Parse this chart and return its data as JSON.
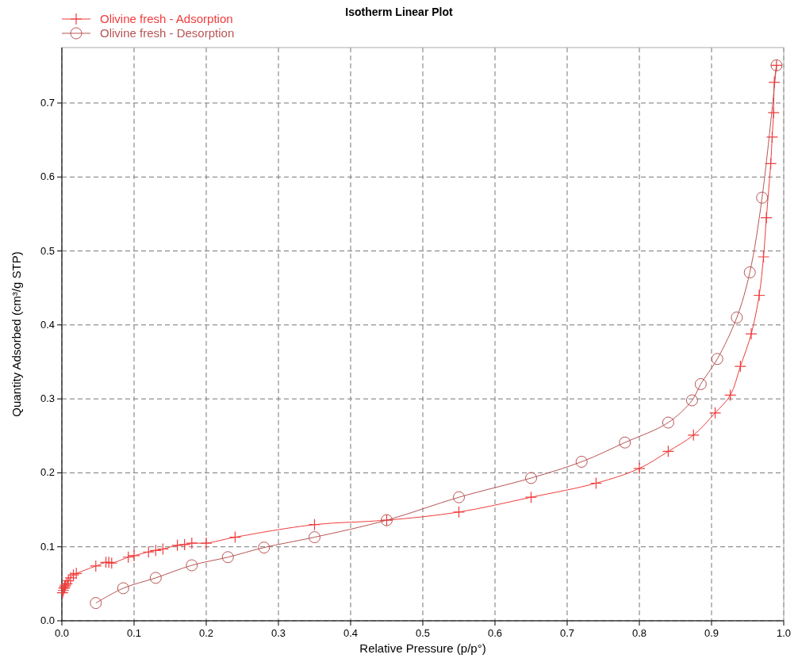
{
  "chart_data": {
    "type": "line",
    "title": "Isotherm Linear Plot",
    "xlabel": "Relative Pressure (p/p°)",
    "ylabel": "Quantity Adsorbed (cm³/g STP)",
    "xlim": [
      0,
      1
    ],
    "xticks": [
      {
        "value": 0,
        "label": "0.0"
      },
      0.1,
      0.2,
      0.3,
      0.4,
      0.5,
      0.6,
      0.7,
      0.8,
      0.9,
      {
        "value": 1,
        "label": "1.0"
      }
    ],
    "ylim": [
      0,
      0.775
    ],
    "yticks": [
      {
        "value": 0,
        "label": "0.0"
      },
      0.1,
      0.2,
      0.3,
      0.4,
      0.5,
      0.6,
      0.7
    ],
    "grid": true,
    "legend": "top left",
    "series": [
      {
        "name": "Olivine fresh - Adsorption",
        "color": "#f03c3c",
        "marker": "cross",
        "x": [
          0.001,
          0.002,
          0.003,
          0.004,
          0.005,
          0.007,
          0.009,
          0.012,
          0.016,
          0.02,
          0.047,
          0.061,
          0.065,
          0.069,
          0.092,
          0.1,
          0.12,
          0.13,
          0.14,
          0.16,
          0.17,
          0.18,
          0.2,
          0.24,
          0.35,
          0.45,
          0.55,
          0.65,
          0.74,
          0.8,
          0.84,
          0.875,
          0.905,
          0.926,
          0.94,
          0.955,
          0.966,
          0.972,
          0.976,
          0.982,
          0.984,
          0.986,
          0.987,
          0.99
        ],
        "values": [
          0.038,
          0.041,
          0.044,
          0.046,
          0.048,
          0.05,
          0.054,
          0.058,
          0.062,
          0.064,
          0.074,
          0.079,
          0.079,
          0.078,
          0.086,
          0.088,
          0.093,
          0.095,
          0.097,
          0.102,
          0.103,
          0.105,
          0.105,
          0.113,
          0.13,
          0.136,
          0.147,
          0.167,
          0.186,
          0.206,
          0.229,
          0.251,
          0.281,
          0.305,
          0.344,
          0.388,
          0.44,
          0.492,
          0.545,
          0.618,
          0.654,
          0.687,
          0.728,
          0.751
        ]
      },
      {
        "name": "Olivine fresh - Desorption",
        "color": "#b85454",
        "marker": "circle",
        "x": [
          0.99,
          0.97,
          0.953,
          0.935,
          0.908,
          0.885,
          0.873,
          0.84,
          0.78,
          0.72,
          0.65,
          0.55,
          0.45,
          0.35,
          0.28,
          0.23,
          0.18,
          0.13,
          0.085,
          0.047
        ],
        "values": [
          0.751,
          0.572,
          0.471,
          0.41,
          0.354,
          0.32,
          0.298,
          0.268,
          0.241,
          0.215,
          0.193,
          0.167,
          0.136,
          0.113,
          0.099,
          0.086,
          0.075,
          0.058,
          0.044,
          0.024
        ]
      }
    ]
  }
}
